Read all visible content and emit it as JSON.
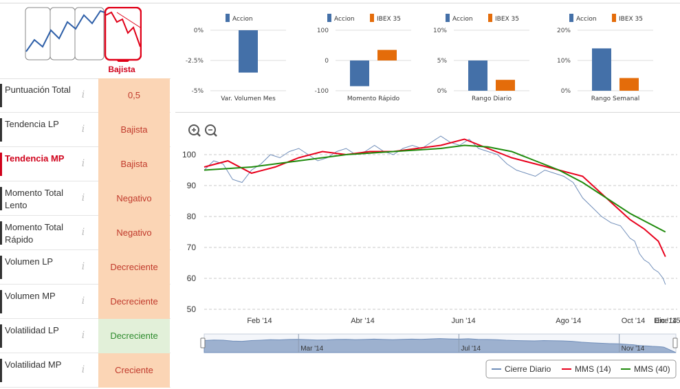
{
  "trend": {
    "label": "Bajista",
    "accent": "#d0021b"
  },
  "indicators": [
    {
      "name": "Puntuación Total",
      "value": "0,5",
      "active": false,
      "style": "orange"
    },
    {
      "name": "Tendencia LP",
      "value": "Bajista",
      "active": false,
      "style": "orange"
    },
    {
      "name": "Tendencia MP",
      "value": "Bajista",
      "active": true,
      "style": "orange"
    },
    {
      "name": "Momento Total Lento",
      "value": "Negativo",
      "active": false,
      "style": "orange"
    },
    {
      "name": "Momento Total Rápido",
      "value": "Negativo",
      "active": false,
      "style": "orange"
    },
    {
      "name": "Volumen LP",
      "value": "Decreciente",
      "active": false,
      "style": "orange"
    },
    {
      "name": "Volumen MP",
      "value": "Decreciente",
      "active": false,
      "style": "orange"
    },
    {
      "name": "Volatilidad LP",
      "value": "Decreciente",
      "active": false,
      "style": "green"
    },
    {
      "name": "Volatilidad MP",
      "value": "Creciente",
      "active": false,
      "style": "orange"
    }
  ],
  "info_glyph": "i",
  "colors": {
    "accion": "#4470a8",
    "ibex": "#e46c0a",
    "cierre": "#6f8db9",
    "mms14": "#e8001c",
    "mms40": "#1f8a0c"
  },
  "chart_data": [
    {
      "type": "bar",
      "title": "Var. Volumen Mes",
      "legend": [
        "Accion"
      ],
      "ticks": [
        "0%",
        "-2.5%",
        "-5%"
      ],
      "ylim": [
        -5,
        0
      ],
      "series": [
        {
          "name": "Accion",
          "values": [
            -3.5
          ]
        }
      ]
    },
    {
      "type": "bar",
      "title": "Momento Rápido",
      "legend": [
        "Accion",
        "IBEX 35"
      ],
      "ticks": [
        "100",
        "0",
        "-100"
      ],
      "ylim": [
        -100,
        100
      ],
      "series": [
        {
          "name": "Accion",
          "values": [
            -85
          ]
        },
        {
          "name": "IBEX 35",
          "values": [
            35
          ]
        }
      ]
    },
    {
      "type": "bar",
      "title": "Rango Diario",
      "legend": [
        "Accion",
        "IBEX 35"
      ],
      "ticks": [
        "10%",
        "5%",
        "0%"
      ],
      "ylim": [
        0,
        10
      ],
      "series": [
        {
          "name": "Accion",
          "values": [
            5
          ]
        },
        {
          "name": "IBEX 35",
          "values": [
            1.8
          ]
        }
      ]
    },
    {
      "type": "bar",
      "title": "Rango Semanal",
      "legend": [
        "Accion",
        "IBEX 35"
      ],
      "ticks": [
        "20%",
        "10%",
        "0%"
      ],
      "ylim": [
        0,
        20
      ],
      "series": [
        {
          "name": "Accion",
          "values": [
            14
          ]
        },
        {
          "name": "IBEX 35",
          "values": [
            4.2
          ]
        }
      ]
    },
    {
      "type": "line",
      "title": "",
      "y_ticks": [
        "100",
        "90",
        "80",
        "70",
        "60",
        "50"
      ],
      "ylim": [
        50,
        100
      ],
      "x_ticks": [
        "Feb '14",
        "Abr '14",
        "Jun '14",
        "Ago '14",
        "Oct '14",
        "Dic '14",
        "Ene '15"
      ],
      "navigator_ticks": [
        "Mar '14",
        "Jul '14",
        "Nov '14"
      ],
      "legend": [
        "Cierre Diario",
        "MMS (14)",
        "MMS (40)"
      ],
      "series": [
        {
          "name": "Cierre Diario",
          "x": [
            0,
            0.02,
            0.04,
            0.06,
            0.08,
            0.1,
            0.12,
            0.14,
            0.16,
            0.18,
            0.2,
            0.22,
            0.24,
            0.26,
            0.28,
            0.3,
            0.32,
            0.34,
            0.36,
            0.38,
            0.4,
            0.42,
            0.44,
            0.46,
            0.48,
            0.5,
            0.52,
            0.54,
            0.56,
            0.58,
            0.6,
            0.62,
            0.64,
            0.66,
            0.68,
            0.7,
            0.72,
            0.74,
            0.76,
            0.78,
            0.8,
            0.82,
            0.84,
            0.86,
            0.88,
            0.9,
            0.91,
            0.92,
            0.93,
            0.94,
            0.95,
            0.96,
            0.97,
            0.975
          ],
          "values": [
            95,
            98,
            97,
            92,
            91,
            95,
            97,
            100,
            99,
            101,
            102,
            100,
            98,
            99,
            101,
            102,
            100,
            101,
            103,
            101,
            100,
            102,
            103,
            102,
            104,
            106,
            104,
            103,
            105,
            102,
            101,
            100,
            97,
            95,
            94,
            93,
            95,
            94,
            93,
            91,
            86,
            83,
            80,
            78,
            77,
            73,
            72,
            68,
            66,
            65,
            63,
            62,
            60,
            58
          ]
        },
        {
          "name": "MMS (14)",
          "x": [
            0,
            0.05,
            0.1,
            0.15,
            0.2,
            0.25,
            0.3,
            0.35,
            0.4,
            0.45,
            0.5,
            0.55,
            0.6,
            0.65,
            0.7,
            0.75,
            0.8,
            0.85,
            0.9,
            0.93,
            0.96,
            0.975
          ],
          "values": [
            96,
            98,
            94,
            96,
            99,
            101,
            100,
            101,
            101,
            102,
            103,
            105,
            102,
            99,
            97,
            95,
            93,
            86,
            79,
            76,
            72,
            67
          ]
        },
        {
          "name": "MMS (40)",
          "x": [
            0,
            0.1,
            0.2,
            0.3,
            0.4,
            0.45,
            0.5,
            0.55,
            0.6,
            0.65,
            0.7,
            0.75,
            0.8,
            0.85,
            0.9,
            0.95,
            0.975
          ],
          "values": [
            95,
            96,
            98,
            100,
            101,
            101.5,
            102,
            103,
            102.5,
            101,
            98,
            95,
            91,
            86,
            81,
            77,
            75
          ]
        }
      ]
    }
  ]
}
